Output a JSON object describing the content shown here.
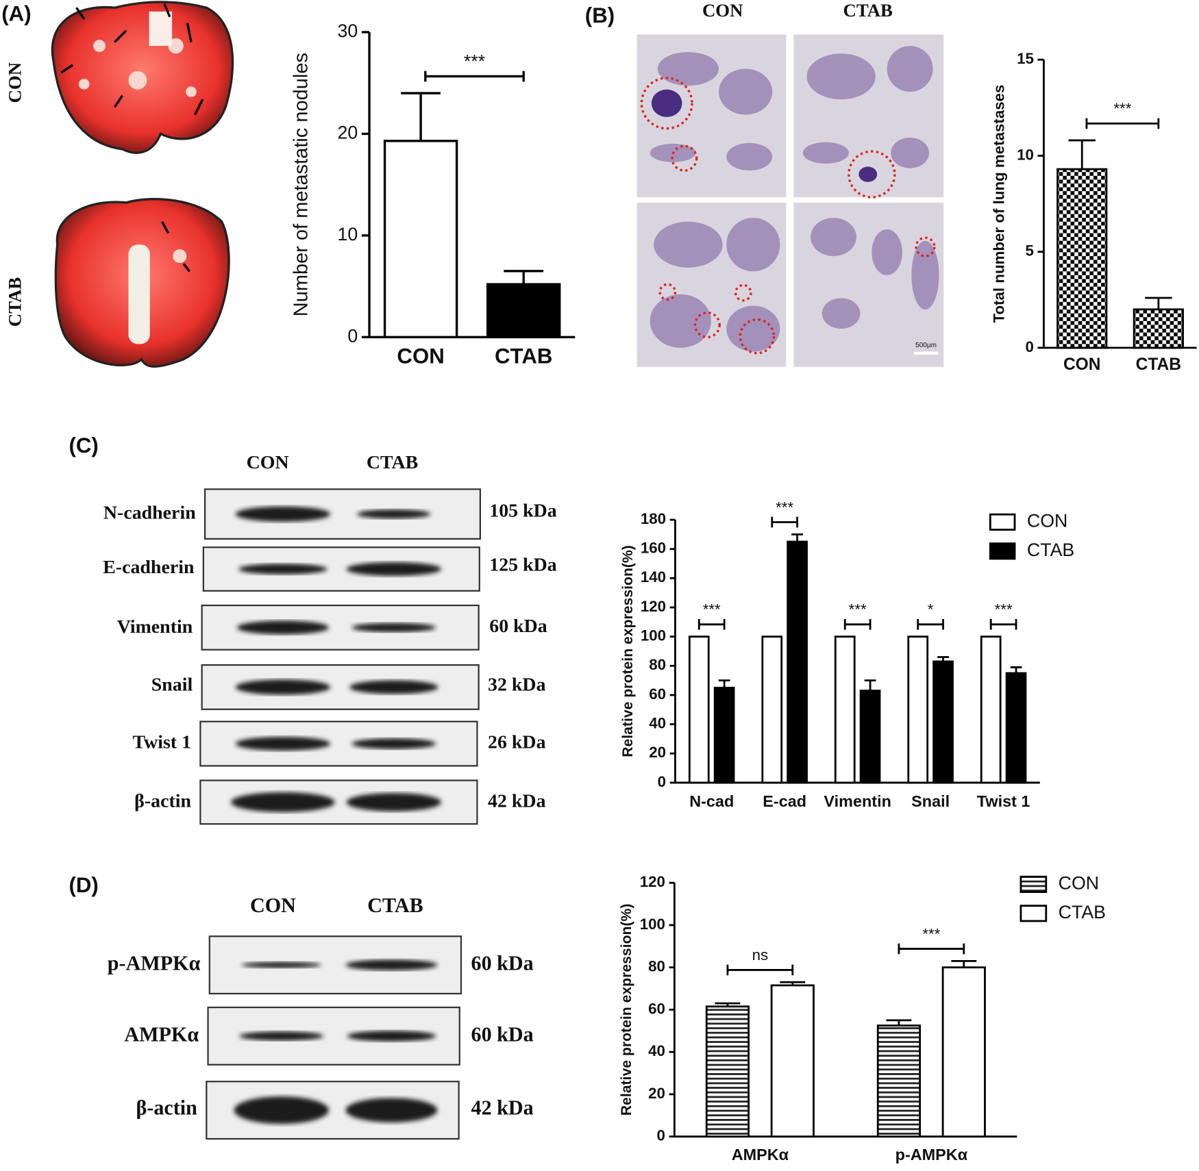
{
  "figure": {
    "panels": [
      "(A)",
      "(B)",
      "(C)",
      "(D)"
    ],
    "a_photo_labels": [
      "CON",
      "CTAB"
    ],
    "b_headers": [
      "CON",
      "CTAB"
    ],
    "b_scale": "500μm",
    "c_blot": {
      "headers": [
        "CON",
        "CTAB"
      ],
      "rows": [
        {
          "label": "N-cadherin",
          "size": "105 kDa"
        },
        {
          "label": "E-cadherin",
          "size": "125 kDa"
        },
        {
          "label": "Vimentin",
          "size": "60 kDa"
        },
        {
          "label": "Snail",
          "size": "32 kDa"
        },
        {
          "label": "Twist 1",
          "size": "26 kDa"
        },
        {
          "label": "β-actin",
          "size": "42 kDa"
        }
      ]
    },
    "d_blot": {
      "headers": [
        "CON",
        "CTAB"
      ],
      "rows": [
        {
          "label": "p-AMPKα",
          "size": "60 kDa"
        },
        {
          "label": "AMPKα",
          "size": "60 kDa"
        },
        {
          "label": "β-actin",
          "size": "42 kDa"
        }
      ]
    }
  },
  "chart_data": [
    {
      "type": "bar",
      "ylabel": "Number of metastatic nodules",
      "categories": [
        "CON",
        "CTAB"
      ],
      "values": [
        19.3,
        5.2
      ],
      "errors": [
        4.7,
        1.3
      ],
      "colors": [
        "#ffffff",
        "#000000"
      ],
      "ylim": [
        0,
        30
      ],
      "yticks": [
        0,
        10,
        20,
        30
      ],
      "significance": "***"
    },
    {
      "type": "bar",
      "ylabel": "Total number of lung metastases",
      "categories": [
        "CON",
        "CTAB"
      ],
      "values": [
        9.3,
        2.0
      ],
      "errors": [
        1.5,
        0.6
      ],
      "colors": [
        "#ffffff",
        "#ffffff"
      ],
      "pattern": "checkerboard",
      "ylim": [
        0,
        15
      ],
      "yticks": [
        0,
        5,
        10,
        15
      ],
      "significance": "***"
    },
    {
      "type": "grouped-bar",
      "ylabel": "Relative protein expression(%)",
      "categories": [
        "N-cad",
        "E-cad",
        "Vimentin",
        "Snail",
        "Twist 1"
      ],
      "series": [
        {
          "name": "CON",
          "color": "#ffffff",
          "values": [
            100,
            100,
            100,
            100,
            100
          ]
        },
        {
          "name": "CTAB",
          "color": "#000000",
          "values": [
            65,
            165,
            63,
            83,
            75
          ],
          "errors": [
            5,
            5,
            7,
            3,
            4
          ]
        }
      ],
      "ylim": [
        0,
        180
      ],
      "yticks": [
        0,
        20,
        40,
        60,
        80,
        100,
        120,
        140,
        160,
        180
      ],
      "significance": [
        "***",
        "***",
        "***",
        "*",
        "***"
      ],
      "legend": "top-right"
    },
    {
      "type": "grouped-bar",
      "ylabel": "Relative protein expression(%)",
      "categories": [
        "AMPKα",
        "p-AMPKα"
      ],
      "series": [
        {
          "name": "CON",
          "color": "#ffffff",
          "pattern": "horizontal-stripes",
          "values": [
            61.5,
            52.5
          ],
          "errors": [
            1.5,
            2.5
          ]
        },
        {
          "name": "CTAB",
          "color": "#ffffff",
          "values": [
            71.5,
            80
          ],
          "errors": [
            1.5,
            3
          ]
        }
      ],
      "ylim": [
        0,
        120
      ],
      "yticks": [
        0,
        20,
        40,
        60,
        80,
        100,
        120
      ],
      "significance": [
        "ns",
        "***"
      ],
      "legend": "top-right"
    }
  ]
}
